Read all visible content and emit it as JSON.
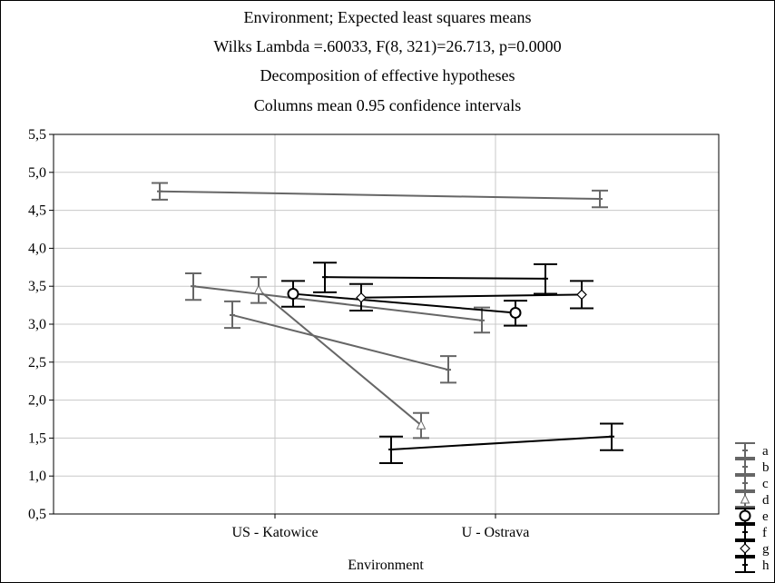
{
  "chart_data": {
    "type": "line",
    "title_lines": [
      "Environment; Expected least squares means",
      "Wilks Lambda =.60033, F(8, 321)=26.713, p=0.0000",
      "Decomposition of effective hypotheses",
      "Columns mean 0.95 confidence intervals"
    ],
    "xlabel": "Environment",
    "ylabel": "",
    "categories": [
      "US - Katowice",
      "U - Ostrava"
    ],
    "ylim": [
      0.5,
      5.5
    ],
    "yticks": [
      "0,5",
      "1,0",
      "1,5",
      "2,0",
      "2,5",
      "3,0",
      "3,5",
      "4,0",
      "4,5",
      "5,0",
      "5,5"
    ],
    "grid": true,
    "legend_position": "right-bottom",
    "series": [
      {
        "name": "a",
        "color": "#666666",
        "marker": "dash",
        "values": [
          4.75,
          4.65
        ],
        "ci": [
          [
            4.64,
            4.86
          ],
          [
            4.54,
            4.76
          ]
        ]
      },
      {
        "name": "b",
        "color": "#666666",
        "marker": "dash",
        "values": [
          3.5,
          3.05
        ],
        "ci": [
          [
            3.32,
            3.67
          ],
          [
            2.89,
            3.22
          ]
        ]
      },
      {
        "name": "c",
        "color": "#666666",
        "marker": "dash",
        "values": [
          3.12,
          2.4
        ],
        "ci": [
          [
            2.95,
            3.3
          ],
          [
            2.23,
            2.58
          ]
        ]
      },
      {
        "name": "d",
        "color": "#666666",
        "marker": "triangle",
        "values": [
          3.45,
          1.67
        ],
        "ci": [
          [
            3.28,
            3.62
          ],
          [
            1.5,
            1.83
          ]
        ]
      },
      {
        "name": "e",
        "color": "#000000",
        "marker": "circle",
        "values": [
          3.4,
          3.15
        ],
        "ci": [
          [
            3.23,
            3.57
          ],
          [
            2.98,
            3.31
          ]
        ]
      },
      {
        "name": "f",
        "color": "#000000",
        "marker": "dash",
        "values": [
          3.62,
          3.6
        ],
        "ci": [
          [
            3.42,
            3.81
          ],
          [
            3.4,
            3.79
          ]
        ]
      },
      {
        "name": "g",
        "color": "#000000",
        "marker": "diamond",
        "values": [
          3.35,
          3.39
        ],
        "ci": [
          [
            3.18,
            3.53
          ],
          [
            3.21,
            3.57
          ]
        ]
      },
      {
        "name": "h",
        "color": "#000000",
        "marker": "dash",
        "values": [
          1.35,
          1.52
        ],
        "ci": [
          [
            1.17,
            1.52
          ],
          [
            1.34,
            1.69
          ]
        ]
      }
    ]
  }
}
